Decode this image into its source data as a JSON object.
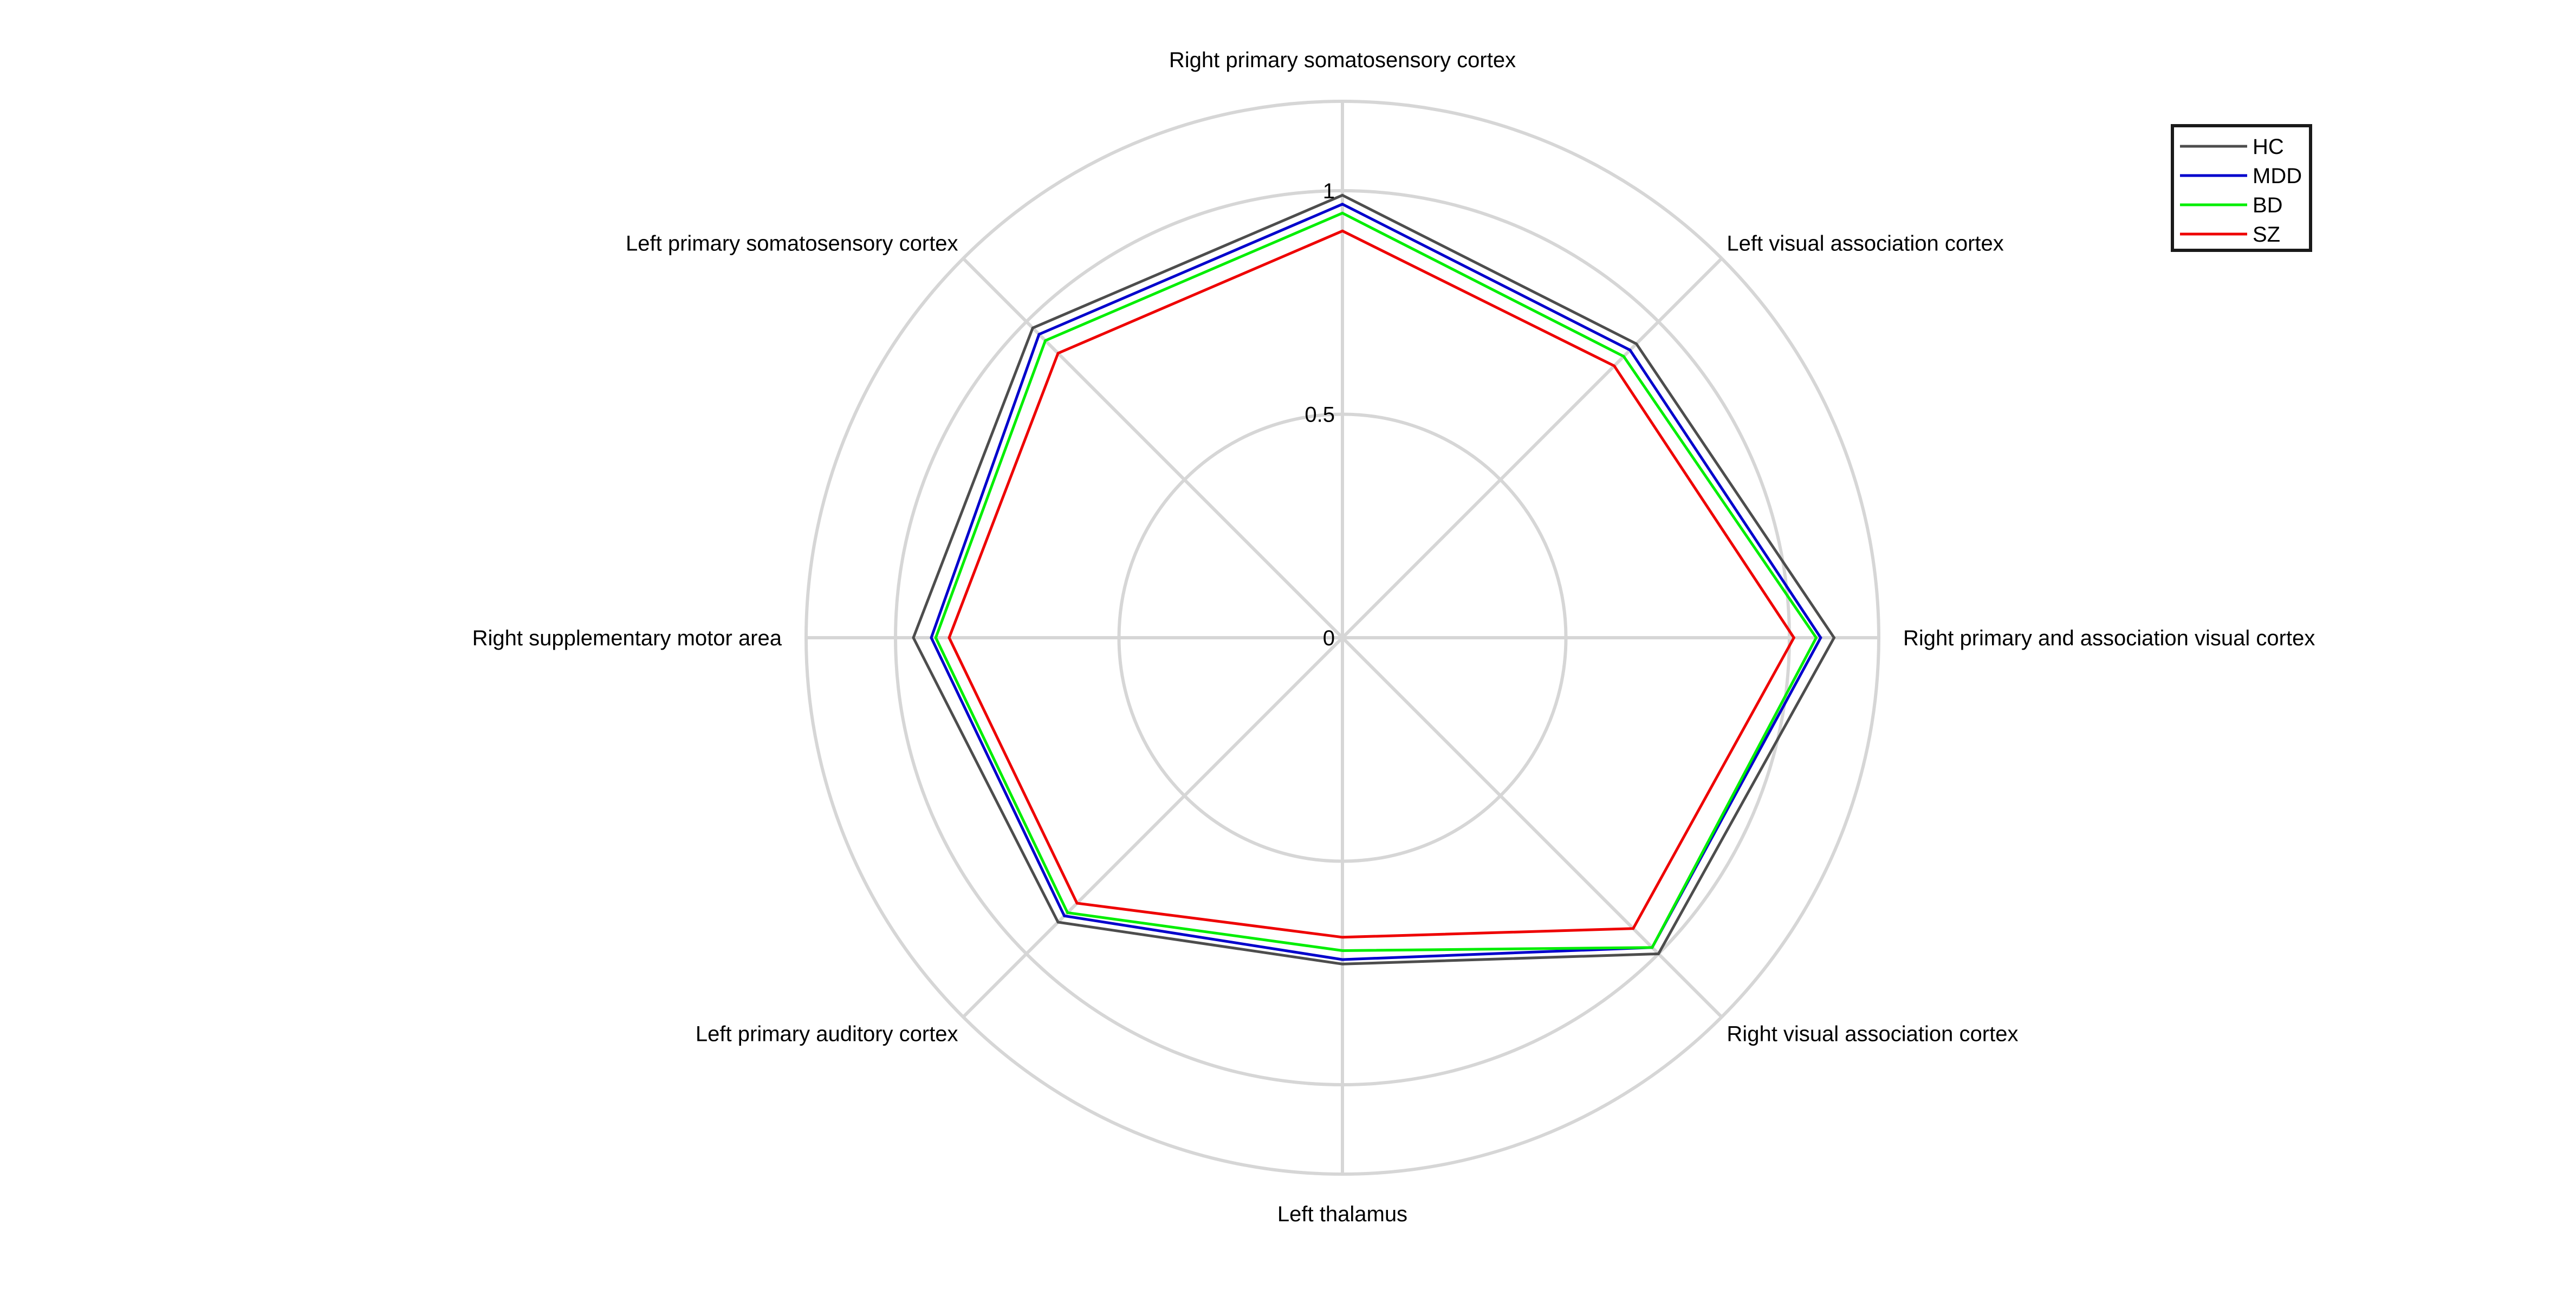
{
  "chart_data": {
    "type": "radar",
    "title": "",
    "axes": [
      "Right primary somatosensory cortex",
      "Left visual association cortex",
      "Right primary and association visual cortex",
      "Right visual association cortex",
      "Left thalamus",
      "Left primary auditory cortex",
      "Right supplementary motor area",
      "Left primary somatosensory cortex"
    ],
    "radial_ticks": [
      "0",
      "0.5",
      "1"
    ],
    "radial_range": [
      0,
      1.2
    ],
    "grid": true,
    "legend_placement": "top-right",
    "series": [
      {
        "name": "HC",
        "color": "#4d4d4d",
        "values": [
          0.99,
          0.93,
          1.1,
          1.0,
          0.73,
          0.9,
          0.96,
          0.98
        ]
      },
      {
        "name": "MDD",
        "color": "#0000cc",
        "values": [
          0.97,
          0.91,
          1.07,
          0.98,
          0.72,
          0.88,
          0.92,
          0.96
        ]
      },
      {
        "name": "BD",
        "color": "#00ee00",
        "values": [
          0.95,
          0.89,
          1.06,
          0.98,
          0.7,
          0.87,
          0.91,
          0.94
        ]
      },
      {
        "name": "SZ",
        "color": "#ee0000",
        "values": [
          0.91,
          0.86,
          1.01,
          0.92,
          0.67,
          0.84,
          0.88,
          0.9
        ]
      }
    ]
  }
}
